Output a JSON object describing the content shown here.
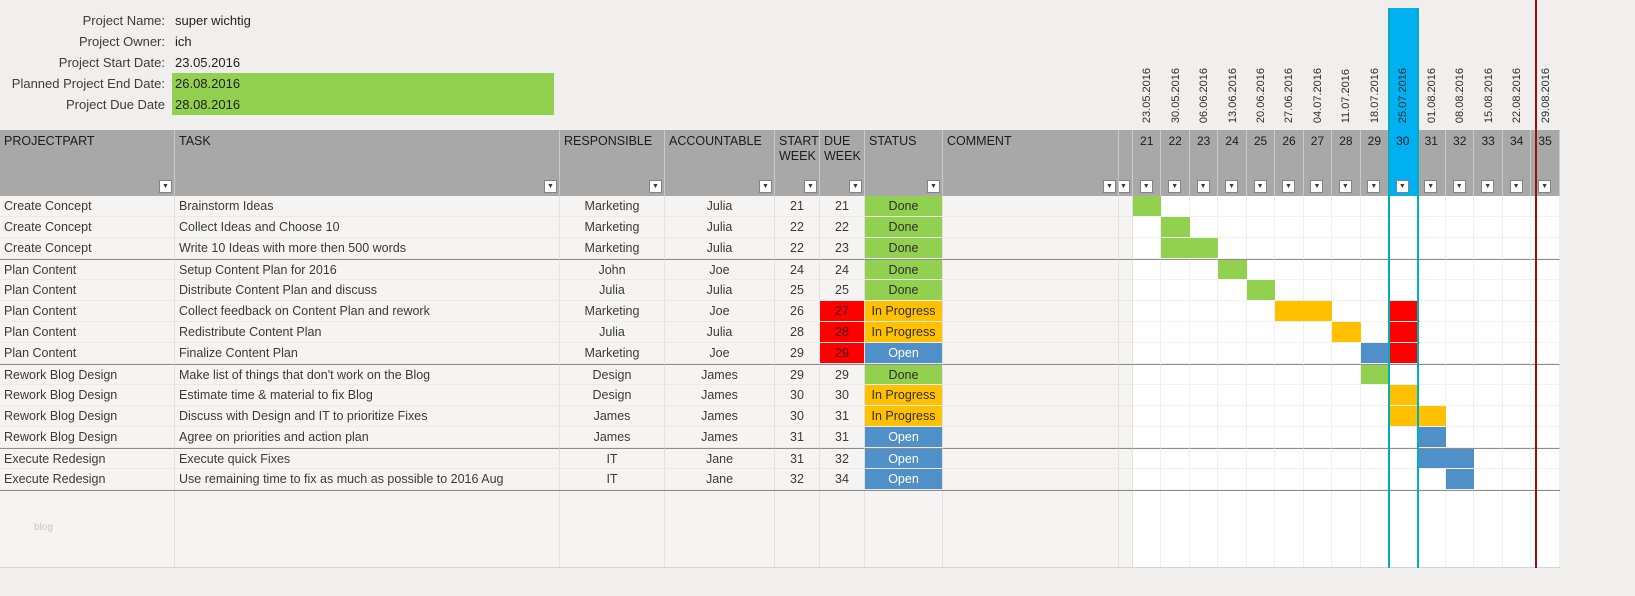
{
  "info": {
    "rows": [
      {
        "label": "Project Name:",
        "value": "super wichtig",
        "highlight": false
      },
      {
        "label": "Project Owner:",
        "value": "ich",
        "highlight": false
      },
      {
        "label": "Project Start Date:",
        "value": "23.05.2016",
        "highlight": false
      },
      {
        "label": "Planned Project End Date:",
        "value": "26.08.2016",
        "highlight": true
      },
      {
        "label": "Project Due Date",
        "value": "28.08.2016",
        "highlight": true
      }
    ]
  },
  "table": {
    "columns": [
      {
        "key": "part",
        "label": "PROJECTPART"
      },
      {
        "key": "task",
        "label": "TASK"
      },
      {
        "key": "responsible",
        "label": "RESPONSIBLE"
      },
      {
        "key": "accountable",
        "label": "ACCOUNTABLE"
      },
      {
        "key": "start_week",
        "label": "START WEEK"
      },
      {
        "key": "due_week",
        "label": "DUE WEEK"
      },
      {
        "key": "status",
        "label": "STATUS"
      },
      {
        "key": "comment",
        "label": "COMMENT"
      }
    ],
    "rows": [
      {
        "part": "Create Concept",
        "task": "Brainstorm Ideas",
        "responsible": "Marketing",
        "accountable": "Julia",
        "start_week": "21",
        "due_week": "21",
        "due_overdue": false,
        "status": "Done",
        "comment": "",
        "group_start": false,
        "bars": [
          {
            "week": 21,
            "color": "done"
          }
        ]
      },
      {
        "part": "Create Concept",
        "task": "Collect Ideas and Choose 10",
        "responsible": "Marketing",
        "accountable": "Julia",
        "start_week": "22",
        "due_week": "22",
        "due_overdue": false,
        "status": "Done",
        "comment": "",
        "group_start": false,
        "bars": [
          {
            "week": 22,
            "color": "done"
          }
        ]
      },
      {
        "part": "Create Concept",
        "task": "Write 10 Ideas with more then 500 words",
        "responsible": "Marketing",
        "accountable": "Julia",
        "start_week": "22",
        "due_week": "23",
        "due_overdue": false,
        "status": "Done",
        "comment": "",
        "group_start": false,
        "bars": [
          {
            "week": 22,
            "color": "done"
          },
          {
            "week": 23,
            "color": "done"
          }
        ]
      },
      {
        "part": "Plan Content",
        "task": "Setup Content Plan for 2016",
        "responsible": "John",
        "accountable": "Joe",
        "start_week": "24",
        "due_week": "24",
        "due_overdue": false,
        "status": "Done",
        "comment": "",
        "group_start": true,
        "bars": [
          {
            "week": 24,
            "color": "done"
          }
        ]
      },
      {
        "part": "Plan Content",
        "task": "Distribute Content Plan and discuss",
        "responsible": "Julia",
        "accountable": "Julia",
        "start_week": "25",
        "due_week": "25",
        "due_overdue": false,
        "status": "Done",
        "comment": "",
        "group_start": false,
        "bars": [
          {
            "week": 25,
            "color": "done"
          }
        ]
      },
      {
        "part": "Plan Content",
        "task": "Collect feedback on Content Plan and rework",
        "responsible": "Marketing",
        "accountable": "Joe",
        "start_week": "26",
        "due_week": "27",
        "due_overdue": true,
        "status": "In Progress",
        "comment": "",
        "group_start": false,
        "bars": [
          {
            "week": 26,
            "color": "in_progress"
          },
          {
            "week": 27,
            "color": "in_progress"
          },
          {
            "week": 30,
            "color": "overdue"
          }
        ]
      },
      {
        "part": "Plan Content",
        "task": "Redistribute Content Plan",
        "responsible": "Julia",
        "accountable": "Julia",
        "start_week": "28",
        "due_week": "28",
        "due_overdue": true,
        "status": "In Progress",
        "comment": "",
        "group_start": false,
        "bars": [
          {
            "week": 28,
            "color": "in_progress"
          },
          {
            "week": 30,
            "color": "overdue"
          }
        ]
      },
      {
        "part": "Plan Content",
        "task": "Finalize Content Plan",
        "responsible": "Marketing",
        "accountable": "Joe",
        "start_week": "29",
        "due_week": "29",
        "due_overdue": true,
        "status": "Open",
        "comment": "",
        "group_start": false,
        "bars": [
          {
            "week": 29,
            "color": "open"
          },
          {
            "week": 30,
            "color": "overdue"
          }
        ]
      },
      {
        "part": "Rework Blog Design",
        "task": "Make list of things that don't work on the Blog",
        "responsible": "Design",
        "accountable": "James",
        "start_week": "29",
        "due_week": "29",
        "due_overdue": false,
        "status": "Done",
        "comment": "",
        "group_start": true,
        "bars": [
          {
            "week": 29,
            "color": "done"
          }
        ]
      },
      {
        "part": "Rework Blog Design",
        "task": "Estimate time & material to fix Blog",
        "responsible": "Design",
        "accountable": "James",
        "start_week": "30",
        "due_week": "30",
        "due_overdue": false,
        "status": "In Progress",
        "comment": "",
        "group_start": false,
        "bars": [
          {
            "week": 30,
            "color": "in_progress"
          }
        ]
      },
      {
        "part": "Rework Blog Design",
        "task": "Discuss with Design and IT to prioritize Fixes",
        "responsible": "James",
        "accountable": "James",
        "start_week": "30",
        "due_week": "31",
        "due_overdue": false,
        "status": "In Progress",
        "comment": "",
        "group_start": false,
        "bars": [
          {
            "week": 30,
            "color": "in_progress"
          },
          {
            "week": 31,
            "color": "in_progress"
          }
        ]
      },
      {
        "part": "Rework Blog Design",
        "task": "Agree on priorities and action plan",
        "responsible": "James",
        "accountable": "James",
        "start_week": "31",
        "due_week": "31",
        "due_overdue": false,
        "status": "Open",
        "comment": "",
        "group_start": false,
        "bars": [
          {
            "week": 31,
            "color": "open"
          }
        ]
      },
      {
        "part": "Execute Redesign",
        "task": "Execute quick Fixes",
        "responsible": "IT",
        "accountable": "Jane",
        "start_week": "31",
        "due_week": "32",
        "due_overdue": false,
        "status": "Open",
        "comment": "",
        "group_start": true,
        "bars": [
          {
            "week": 31,
            "color": "open"
          },
          {
            "week": 32,
            "color": "open"
          }
        ]
      },
      {
        "part": "Execute Redesign",
        "task": "Use remaining time to fix as much as possible to 2016 Aug",
        "responsible": "IT",
        "accountable": "Jane",
        "start_week": "32",
        "due_week": "34",
        "due_overdue": false,
        "status": "Open",
        "comment": "",
        "group_start": false,
        "bars": [
          {
            "week": 32,
            "color": "open"
          }
        ]
      }
    ]
  },
  "gantt": {
    "weeks": [
      21,
      22,
      23,
      24,
      25,
      26,
      27,
      28,
      29,
      30,
      31,
      32,
      33,
      34,
      35
    ],
    "dates": [
      "23.05.2016",
      "30.05.2016",
      "06.06.2016",
      "13.06.2016",
      "20.06.2016",
      "27.06.2016",
      "04.07.2016",
      "11.07.2016",
      "18.07.2016",
      "25.07.2016",
      "01.08.2016",
      "08.08.2016",
      "15.08.2016",
      "22.08.2016",
      "29.08.2016"
    ],
    "current_week": 30,
    "current_week_date": "25.07.2016"
  },
  "colors": {
    "done": "#92d050",
    "in_progress": "#ffc000",
    "open": "#5090c8",
    "overdue": "#ff0000",
    "current_week": "#00b0f0",
    "highlight_green": "#92d050",
    "week_line": "#00aebf",
    "end_line": "#9c1006"
  },
  "icons": {
    "filter": "▼"
  },
  "watermark": "blog"
}
